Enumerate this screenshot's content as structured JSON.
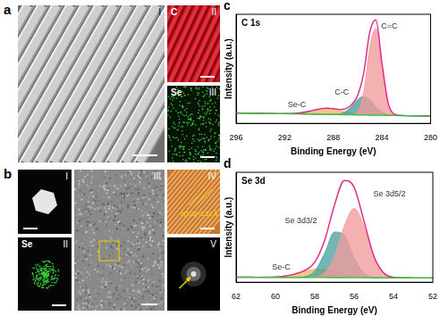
{
  "figure": {
    "panels": [
      {
        "label": "a",
        "images": [
          {
            "label": "I"
          },
          {
            "label": "II",
            "element": "C"
          },
          {
            "label": "III",
            "element": "Se"
          }
        ]
      },
      {
        "label": "b",
        "images": [
          {
            "label": "I"
          },
          {
            "label": "II",
            "element": "Se"
          },
          {
            "label": "III"
          },
          {
            "label": "IV",
            "annotation": "d(113)=1.61 Å"
          },
          {
            "label": "V"
          }
        ]
      }
    ]
  },
  "chart_data": [
    {
      "panel": "c",
      "type": "line",
      "title": "C 1s",
      "x_label": "Binding Energy (eV)",
      "y_label": "Intensity (a.u.)",
      "x": [
        296,
        295.5,
        295,
        294.5,
        294,
        293.5,
        293,
        292.5,
        292,
        291.5,
        291,
        290.5,
        290,
        289.5,
        289,
        288.5,
        288,
        287.5,
        287,
        286.5,
        286,
        285.5,
        285,
        284.5,
        284,
        283.5,
        283,
        282.5,
        282,
        281.5,
        281,
        280.5,
        280
      ],
      "xlim": [
        296,
        280
      ],
      "xticks": [
        296,
        292,
        288,
        284,
        280
      ],
      "ylim": [
        0,
        105
      ],
      "tick_labels": "x",
      "grid": false,
      "series": [
        {
          "type": "line",
          "color": "#33c43a",
          "values": [
            10.0,
            9.9,
            9.8,
            9.7,
            9.6,
            9.5,
            9.4,
            9.3,
            9.3,
            9.2,
            9.1,
            9.0,
            8.9,
            8.8,
            8.7,
            8.6,
            8.5,
            8.4,
            8.3,
            8.2,
            8.1,
            8.0,
            7.9,
            7.8,
            7.8,
            7.7,
            7.6,
            7.5,
            7.4,
            7.3,
            7.2,
            7.1,
            7.0
          ]
        },
        {
          "type": "area",
          "color": "#f29b9b",
          "values": [
            10.0,
            9.9,
            9.8,
            9.7,
            9.6,
            9.5,
            9.4,
            9.3,
            9.3,
            9.2,
            9.1,
            9.0,
            8.9,
            8.8,
            8.7,
            8.6,
            8.5,
            8.4,
            8.3,
            8.4,
            11.4,
            30.3,
            73.2,
            91.4,
            54.7,
            19.2,
            8.8,
            7.7,
            7.4,
            7.3,
            7.2,
            7.1,
            7.0
          ]
        },
        {
          "type": "area",
          "color": "#4b9a98",
          "values": [
            10.0,
            9.9,
            9.8,
            9.7,
            9.6,
            9.5,
            9.4,
            9.3,
            9.3,
            9.2,
            9.1,
            9.0,
            8.9,
            8.8,
            8.7,
            8.6,
            8.6,
            9.2,
            11.4,
            16.4,
            22.9,
            26.0,
            22.7,
            16.0,
            10.9,
            8.5,
            7.7,
            7.5,
            7.4,
            7.3,
            7.2,
            7.1,
            7.0
          ]
        },
        {
          "type": "area",
          "color": "#f0b46a",
          "values": [
            10.0,
            9.9,
            9.8,
            9.7,
            9.6,
            9.5,
            9.4,
            9.3,
            9.4,
            9.5,
            9.8,
            10.5,
            11.6,
            13.0,
            14.2,
            14.6,
            14.0,
            12.6,
            11.0,
            9.7,
            8.8,
            8.3,
            8.0,
            7.8,
            7.8,
            7.7,
            7.6,
            7.5,
            7.4,
            7.3,
            7.2,
            7.1,
            7.0
          ]
        },
        {
          "type": "line",
          "color": "#e0218a",
          "values": [
            10.0,
            9.9,
            9.8,
            9.7,
            9.6,
            9.5,
            9.4,
            9.3,
            9.4,
            9.5,
            9.8,
            10.5,
            11.6,
            13.0,
            14.2,
            14.6,
            14.1,
            13.4,
            14.1,
            18.1,
            26.9,
            48.6,
            88.1,
            99.6,
            57.8,
            20.0,
            8.9,
            7.7,
            7.4,
            7.3,
            7.2,
            7.1,
            7.0
          ]
        }
      ],
      "annotations": [
        {
          "text": "Se-C",
          "x": 291,
          "y": 18
        },
        {
          "text": "C-C",
          "x": 287.3,
          "y": 30
        },
        {
          "text": "C=C",
          "x": 283.4,
          "y": 93
        }
      ]
    },
    {
      "panel": "d",
      "type": "line",
      "title": "Se 3d",
      "x_label": "Binding Energy (eV)",
      "y_label": "Intensity (a.u.)",
      "x": [
        62,
        61.5,
        61,
        60.5,
        60,
        59.5,
        59,
        58.5,
        58,
        57.5,
        57,
        56.5,
        56,
        55.5,
        55,
        54.5,
        54,
        53.5,
        53,
        52.5,
        52
      ],
      "xlim": [
        62,
        52
      ],
      "xticks": [
        62,
        60,
        58,
        56,
        54,
        52
      ],
      "ylim": [
        0,
        130
      ],
      "tick_labels": "x",
      "grid": false,
      "series": [
        {
          "type": "line",
          "color": "#33c43a",
          "values": [
            6.0,
            6.0,
            5.9,
            5.9,
            5.8,
            5.8,
            5.7,
            5.7,
            5.6,
            5.6,
            5.5,
            5.5,
            5.4,
            5.4,
            5.3,
            5.3,
            5.2,
            5.2,
            5.1,
            5.1,
            5.0
          ]
        },
        {
          "type": "area",
          "color": "#f29b9b",
          "values": [
            6.0,
            6.0,
            5.9,
            5.9,
            5.8,
            5.8,
            5.7,
            5.7,
            6.3,
            11.3,
            30.6,
            66.5,
            87.4,
            66.4,
            30.4,
            11.0,
            5.9,
            5.2,
            5.1,
            5.1,
            5.0
          ]
        },
        {
          "type": "area",
          "color": "#4ba3a0",
          "values": [
            6.0,
            6.0,
            5.9,
            5.9,
            5.8,
            5.8,
            5.8,
            6.7,
            13.3,
            34.4,
            59.4,
            55.8,
            28.8,
            10.9,
            5.9,
            5.4,
            5.2,
            5.2,
            5.1,
            5.1,
            5.0
          ]
        },
        {
          "type": "area",
          "color": "#f0b46a",
          "values": [
            6.0,
            6.0,
            5.9,
            6.0,
            6.3,
            7.5,
            9.8,
            13.1,
            15.4,
            15.1,
            12.2,
            9.0,
            6.8,
            5.8,
            5.4,
            5.3,
            5.2,
            5.2,
            5.1,
            5.1,
            5.0
          ]
        },
        {
          "type": "line",
          "color": "#e0218a",
          "values": [
            6.0,
            6.0,
            5.9,
            6.0,
            6.3,
            7.5,
            9.9,
            14.1,
            23.8,
            49.6,
            91.2,
            120.3,
            112.2,
            72.3,
            31.1,
            11.1,
            5.9,
            5.2,
            5.1,
            5.1,
            5.0
          ]
        }
      ],
      "annotations": [
        {
          "text": "Se 3d3/2",
          "x": 58.7,
          "y": 72
        },
        {
          "text": "Se 3d5/2",
          "x": 54.2,
          "y": 104
        },
        {
          "text": "Se-C",
          "x": 59.7,
          "y": 18
        }
      ]
    }
  ]
}
